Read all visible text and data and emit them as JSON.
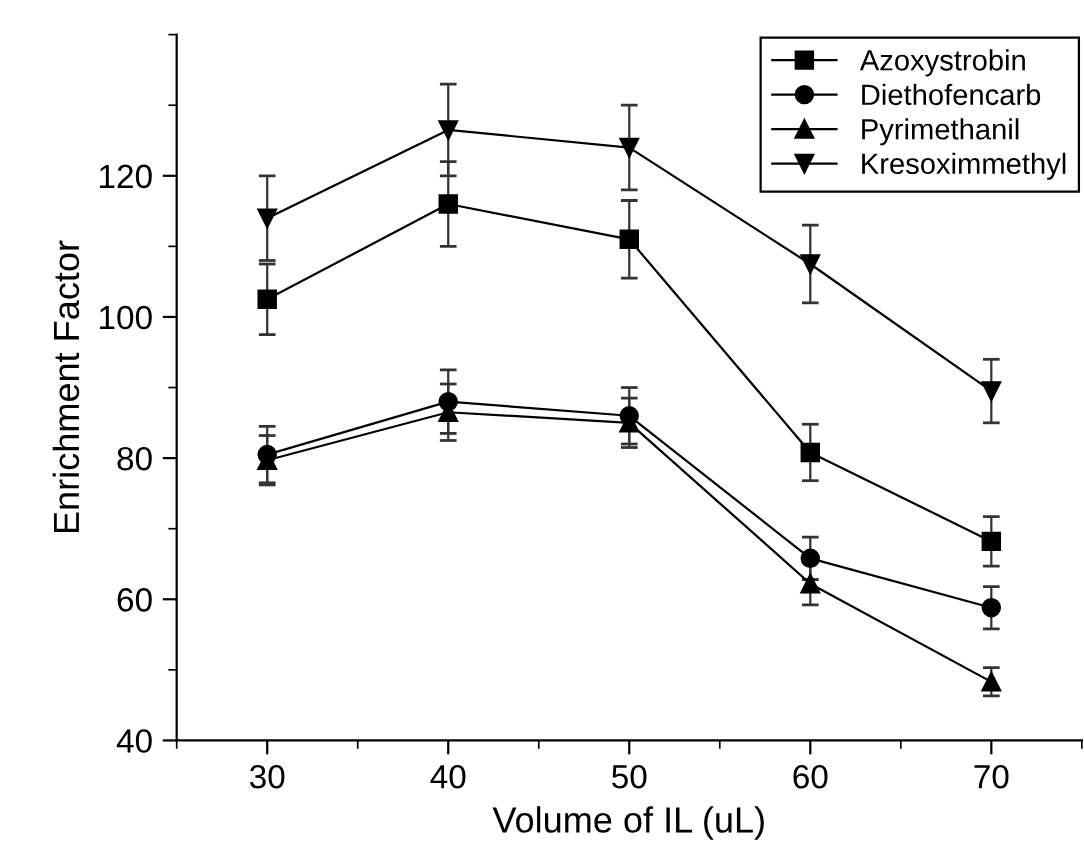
{
  "chart_data": {
    "type": "line",
    "xlabel": "Volume of IL (uL)",
    "ylabel": "Enrichment Factor",
    "x": [
      30,
      40,
      50,
      60,
      70
    ],
    "xlim": [
      25,
      75
    ],
    "xticks": [
      30,
      40,
      50,
      60,
      70
    ],
    "ylim": [
      40,
      140
    ],
    "yticks": [
      40,
      60,
      80,
      100,
      120
    ],
    "legend": "top right",
    "grid": false,
    "line_style": "solid",
    "series": [
      {
        "name": "Azoxystrobin",
        "color": "#000000",
        "marker": "square",
        "values": [
          102.5,
          116,
          111,
          80.8,
          68.2
        ],
        "errors": [
          5,
          6,
          5.5,
          4,
          3.5
        ]
      },
      {
        "name": "Diethofencarb",
        "color": "#000000",
        "marker": "circle",
        "values": [
          80.5,
          88,
          86,
          65.8,
          58.8
        ],
        "errors": [
          4,
          4.5,
          4,
          3,
          3
        ]
      },
      {
        "name": "Pyrimethanil",
        "color": "#000000",
        "marker": "triangle",
        "values": [
          79.7,
          86.5,
          85,
          62.2,
          48.3
        ],
        "errors": [
          3.5,
          4,
          3.5,
          3,
          2
        ]
      },
      {
        "name": "Kresoximmethyl",
        "color": "#000000",
        "marker": "triangle_down",
        "values": [
          114,
          126.5,
          124,
          107.5,
          89.5
        ],
        "errors": [
          6,
          6.5,
          6,
          5.5,
          4.5
        ]
      }
    ]
  }
}
